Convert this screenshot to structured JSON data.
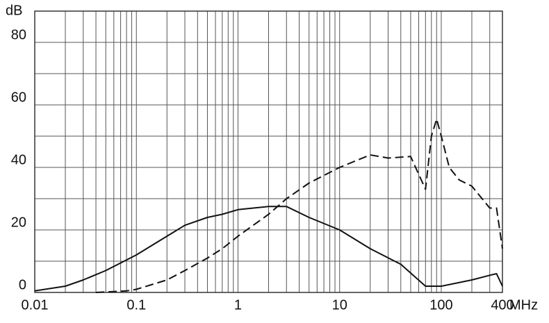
{
  "chart_data": {
    "type": "line",
    "y_unit": "dB",
    "x_unit": "MHz",
    "xscale": "log",
    "xlim": [
      0.01,
      400
    ],
    "xticks": [
      0.01,
      0.1,
      1,
      10,
      100,
      400
    ],
    "x_minor_ticks": [
      0.02,
      0.03,
      0.04,
      0.05,
      0.06,
      0.07,
      0.08,
      0.09,
      0.2,
      0.3,
      0.4,
      0.5,
      0.6,
      0.7,
      0.8,
      0.9,
      2,
      3,
      4,
      5,
      6,
      7,
      8,
      9,
      20,
      30,
      40,
      50,
      60,
      70,
      80,
      90,
      200,
      300
    ],
    "ylim": [
      0,
      90
    ],
    "yticks": [
      0,
      20,
      40,
      60,
      80
    ],
    "y_minor_ticks": [
      10,
      30,
      50,
      70
    ],
    "grid": true,
    "series": [
      {
        "color": "#111111",
        "dash": false,
        "x": [
          0.01,
          0.02,
          0.03,
          0.05,
          0.1,
          0.2,
          0.3,
          0.5,
          0.7,
          1,
          2,
          3,
          5,
          10,
          20,
          40,
          70,
          100,
          200,
          300,
          350,
          400
        ],
        "y": [
          0.5,
          2,
          4,
          7,
          12,
          18,
          21.5,
          24,
          25,
          26.5,
          27.5,
          27.5,
          24,
          20,
          14,
          9,
          2,
          2,
          4,
          5.5,
          6,
          2
        ]
      },
      {
        "color": "#111111",
        "dash": true,
        "x": [
          0.04,
          0.08,
          0.1,
          0.2,
          0.3,
          0.5,
          0.7,
          1,
          2,
          3,
          5,
          10,
          20,
          30,
          50,
          70,
          80,
          90,
          100,
          120,
          150,
          200,
          300,
          350,
          400
        ],
        "y": [
          0,
          0.5,
          1,
          4,
          7,
          11,
          14,
          18,
          25,
          30,
          35,
          40,
          44,
          43,
          43.5,
          33,
          50,
          55.5,
          50,
          40,
          36,
          34,
          27,
          27,
          14
        ]
      }
    ]
  }
}
